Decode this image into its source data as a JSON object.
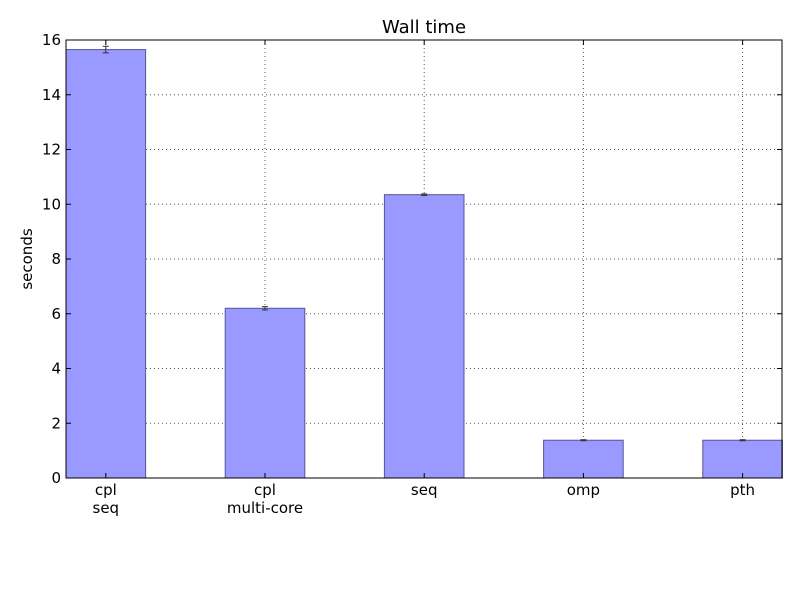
{
  "chart_data": {
    "type": "bar",
    "title": "Wall time",
    "xlabel": "",
    "ylabel": "seconds",
    "ylim": [
      0,
      16
    ],
    "yticks": [
      0,
      2,
      4,
      6,
      8,
      10,
      12,
      14,
      16
    ],
    "grid": true,
    "legend": "none",
    "categories": [
      [
        "cpl",
        "seq"
      ],
      [
        "cpl",
        "multi-core"
      ],
      [
        "seq"
      ],
      [
        "omp"
      ],
      [
        "pth"
      ]
    ],
    "values": [
      15.65,
      6.2,
      10.35,
      1.38,
      1.38
    ],
    "errors": [
      0.12,
      0.06,
      0.03,
      0.02,
      0.02
    ],
    "bar_color": "#9999ff",
    "bar_edge_color": "#555599",
    "error_color": "#333333",
    "grid_color": "#555555"
  }
}
